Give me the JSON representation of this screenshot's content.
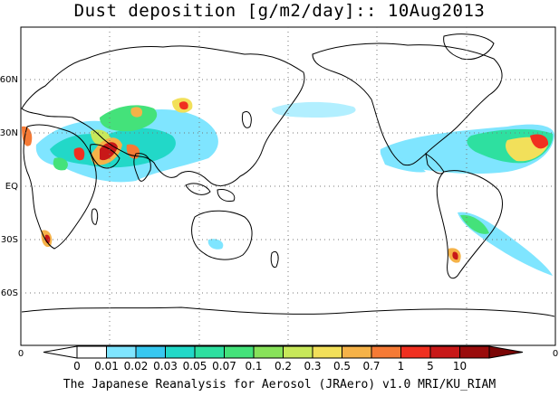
{
  "title": "Dust deposition [g/m2/day]:: 10Aug2013",
  "lat_labels": [
    "60N",
    "30N",
    "EQ",
    "30S",
    "60S"
  ],
  "lon_axis_labels": [
    "0",
    "0"
  ],
  "colorbar": {
    "labels": [
      "0",
      "0.01",
      "0.02",
      "0.03",
      "0.05",
      "0.07",
      "0.1",
      "0.2",
      "0.3",
      "0.5",
      "0.7",
      "1",
      "5",
      "10"
    ],
    "colors": [
      "#ffffff",
      "#7fe5ff",
      "#37c8f0",
      "#22d8c8",
      "#2ee0a0",
      "#44e27a",
      "#88e25a",
      "#c8e85a",
      "#f2e05a",
      "#f5b248",
      "#f57a35",
      "#f03020",
      "#c81818",
      "#9a0c0c",
      "#7a0505"
    ]
  },
  "credit": "The Japanese Reanalysis for Aerosol (JRAero) v1.0 MRI/KU_RIAM"
}
